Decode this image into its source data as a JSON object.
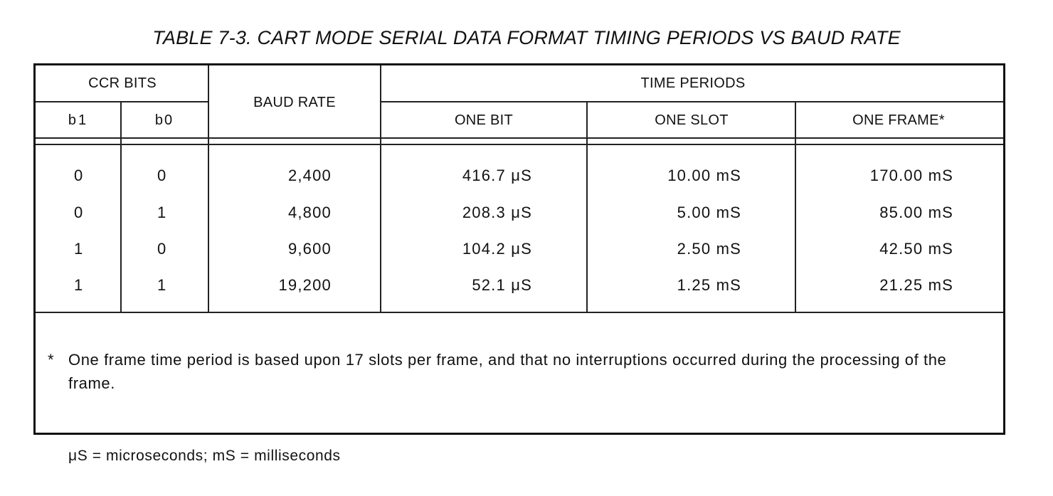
{
  "title": "TABLE 7-3.  CART MODE SERIAL DATA FORMAT TIMING PERIODS VS BAUD RATE",
  "headers": {
    "ccr_bits": "CCR BITS",
    "b1": "b1",
    "b0": "b0",
    "baud_rate": "BAUD RATE",
    "time_periods": "TIME PERIODS",
    "one_bit": "ONE BIT",
    "one_slot": "ONE SLOT",
    "one_frame": "ONE FRAME*"
  },
  "rows": [
    {
      "b1": "0",
      "b0": "0",
      "baud": "2,400",
      "bit": "416.7 μS",
      "slot": "10.00 mS",
      "frame": "170.00 mS"
    },
    {
      "b1": "0",
      "b0": "1",
      "baud": "4,800",
      "bit": "208.3 μS",
      "slot": "5.00 mS",
      "frame": "85.00 mS"
    },
    {
      "b1": "1",
      "b0": "0",
      "baud": "9,600",
      "bit": "104.2 μS",
      "slot": "2.50 mS",
      "frame": "42.50 mS"
    },
    {
      "b1": "1",
      "b0": "1",
      "baud": "19,200",
      "bit": "52.1 μS",
      "slot": "1.25 mS",
      "frame": "21.25 mS"
    }
  ],
  "footnote": {
    "marker": "*",
    "text": "One frame time period is based upon 17 slots per frame, and that no interruptions occurred during the processing of the frame."
  },
  "legend": "μS = microseconds;  mS = milliseconds"
}
